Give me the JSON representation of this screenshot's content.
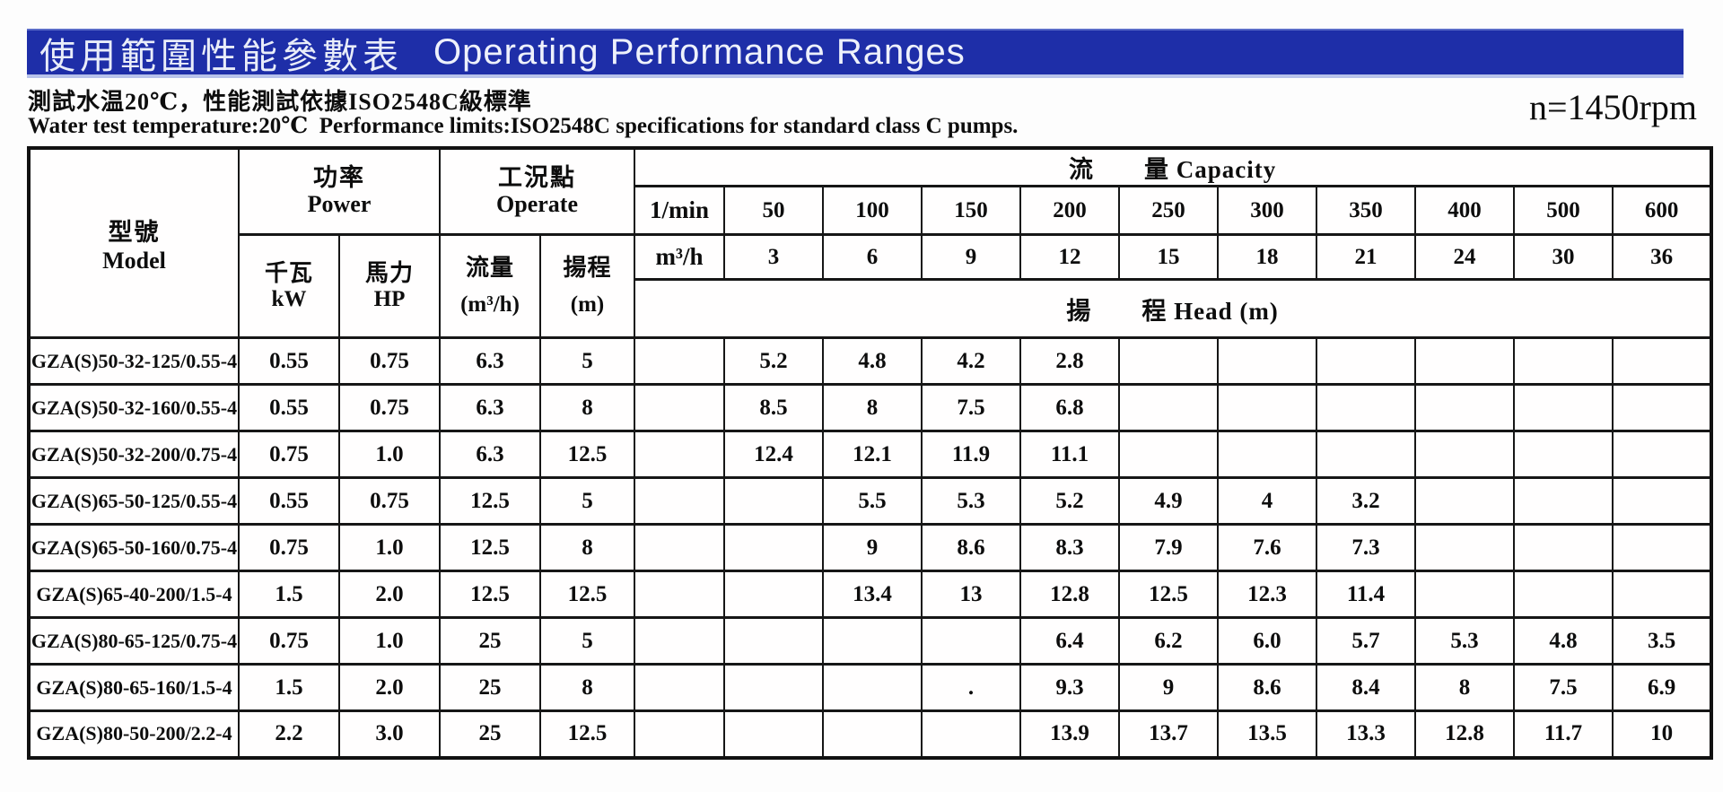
{
  "banner": {
    "title_zh": "使用範圍性能參數表",
    "title_en": "Operating Performance Ranges",
    "bg_color": "#1e2ea8",
    "edge_color": "#b7c2ea",
    "text_color": "#eef1fb"
  },
  "subtitle": {
    "line_zh": "測試水温20℃，性能測試依據ISO2548C級標準",
    "line_en": "Water test temperature:20℃  Performance limits:ISO2548C specifications for standard class C pumps.",
    "speed": "n=1450rpm"
  },
  "table": {
    "model_header": {
      "zh": "型號",
      "en": "Model"
    },
    "power_header": {
      "zh": "功率",
      "en": "Power"
    },
    "operate_header": {
      "zh": "工況點",
      "en": "Operate"
    },
    "kw_header": {
      "zh": "千瓦",
      "en": "kW"
    },
    "hp_header": {
      "zh": "馬力",
      "en": "HP"
    },
    "flow_header": {
      "zh": "流量",
      "en": "(m³/h)"
    },
    "headcol_header": {
      "zh": "揚程",
      "en": "(m)"
    },
    "capacity_header": "流　　量 Capacity",
    "head_band_header": "揚　　程 Head (m)",
    "lmin_label": "1/min",
    "m3h_label": "m³/h",
    "lmin_values": [
      "50",
      "100",
      "150",
      "200",
      "250",
      "300",
      "350",
      "400",
      "500",
      "600"
    ],
    "m3h_values": [
      "3",
      "6",
      "9",
      "12",
      "15",
      "18",
      "21",
      "24",
      "30",
      "36"
    ],
    "rows": [
      {
        "model": "GZA(S)50-32-125/0.55-4",
        "kw": "0.55",
        "hp": "0.75",
        "flow": "6.3",
        "head": "5",
        "values": [
          "5.2",
          "4.8",
          "4.2",
          "2.8",
          "",
          "",
          "",
          "",
          "",
          ""
        ]
      },
      {
        "model": "GZA(S)50-32-160/0.55-4",
        "kw": "0.55",
        "hp": "0.75",
        "flow": "6.3",
        "head": "8",
        "values": [
          "8.5",
          "8",
          "7.5",
          "6.8",
          "",
          "",
          "",
          "",
          "",
          ""
        ]
      },
      {
        "model": "GZA(S)50-32-200/0.75-4",
        "kw": "0.75",
        "hp": "1.0",
        "flow": "6.3",
        "head": "12.5",
        "values": [
          "12.4",
          "12.1",
          "11.9",
          "11.1",
          "",
          "",
          "",
          "",
          "",
          ""
        ]
      },
      {
        "model": "GZA(S)65-50-125/0.55-4",
        "kw": "0.55",
        "hp": "0.75",
        "flow": "12.5",
        "head": "5",
        "values": [
          "",
          "5.5",
          "5.3",
          "5.2",
          "4.9",
          "4",
          "3.2",
          "",
          "",
          ""
        ]
      },
      {
        "model": "GZA(S)65-50-160/0.75-4",
        "kw": "0.75",
        "hp": "1.0",
        "flow": "12.5",
        "head": "8",
        "values": [
          "",
          "9",
          "8.6",
          "8.3",
          "7.9",
          "7.6",
          "7.3",
          "",
          "",
          ""
        ]
      },
      {
        "model": "GZA(S)65-40-200/1.5-4",
        "kw": "1.5",
        "hp": "2.0",
        "flow": "12.5",
        "head": "12.5",
        "values": [
          "",
          "13.4",
          "13",
          "12.8",
          "12.5",
          "12.3",
          "11.4",
          "",
          "",
          ""
        ]
      },
      {
        "model": "GZA(S)80-65-125/0.75-4",
        "kw": "0.75",
        "hp": "1.0",
        "flow": "25",
        "head": "5",
        "values": [
          "",
          "",
          "",
          "6.4",
          "6.2",
          "6.0",
          "5.7",
          "5.3",
          "4.8",
          "3.5"
        ]
      },
      {
        "model": "GZA(S)80-65-160/1.5-4",
        "kw": "1.5",
        "hp": "2.0",
        "flow": "25",
        "head": "8",
        "values": [
          "",
          "",
          ".",
          "9.3",
          "9",
          "8.6",
          "8.4",
          "8",
          "7.5",
          "6.9"
        ]
      },
      {
        "model": "GZA(S)80-50-200/2.2-4",
        "kw": "2.2",
        "hp": "3.0",
        "flow": "25",
        "head": "12.5",
        "values": [
          "",
          "",
          "",
          "13.9",
          "13.7",
          "13.5",
          "13.3",
          "12.8",
          "11.7",
          "10"
        ]
      }
    ]
  }
}
